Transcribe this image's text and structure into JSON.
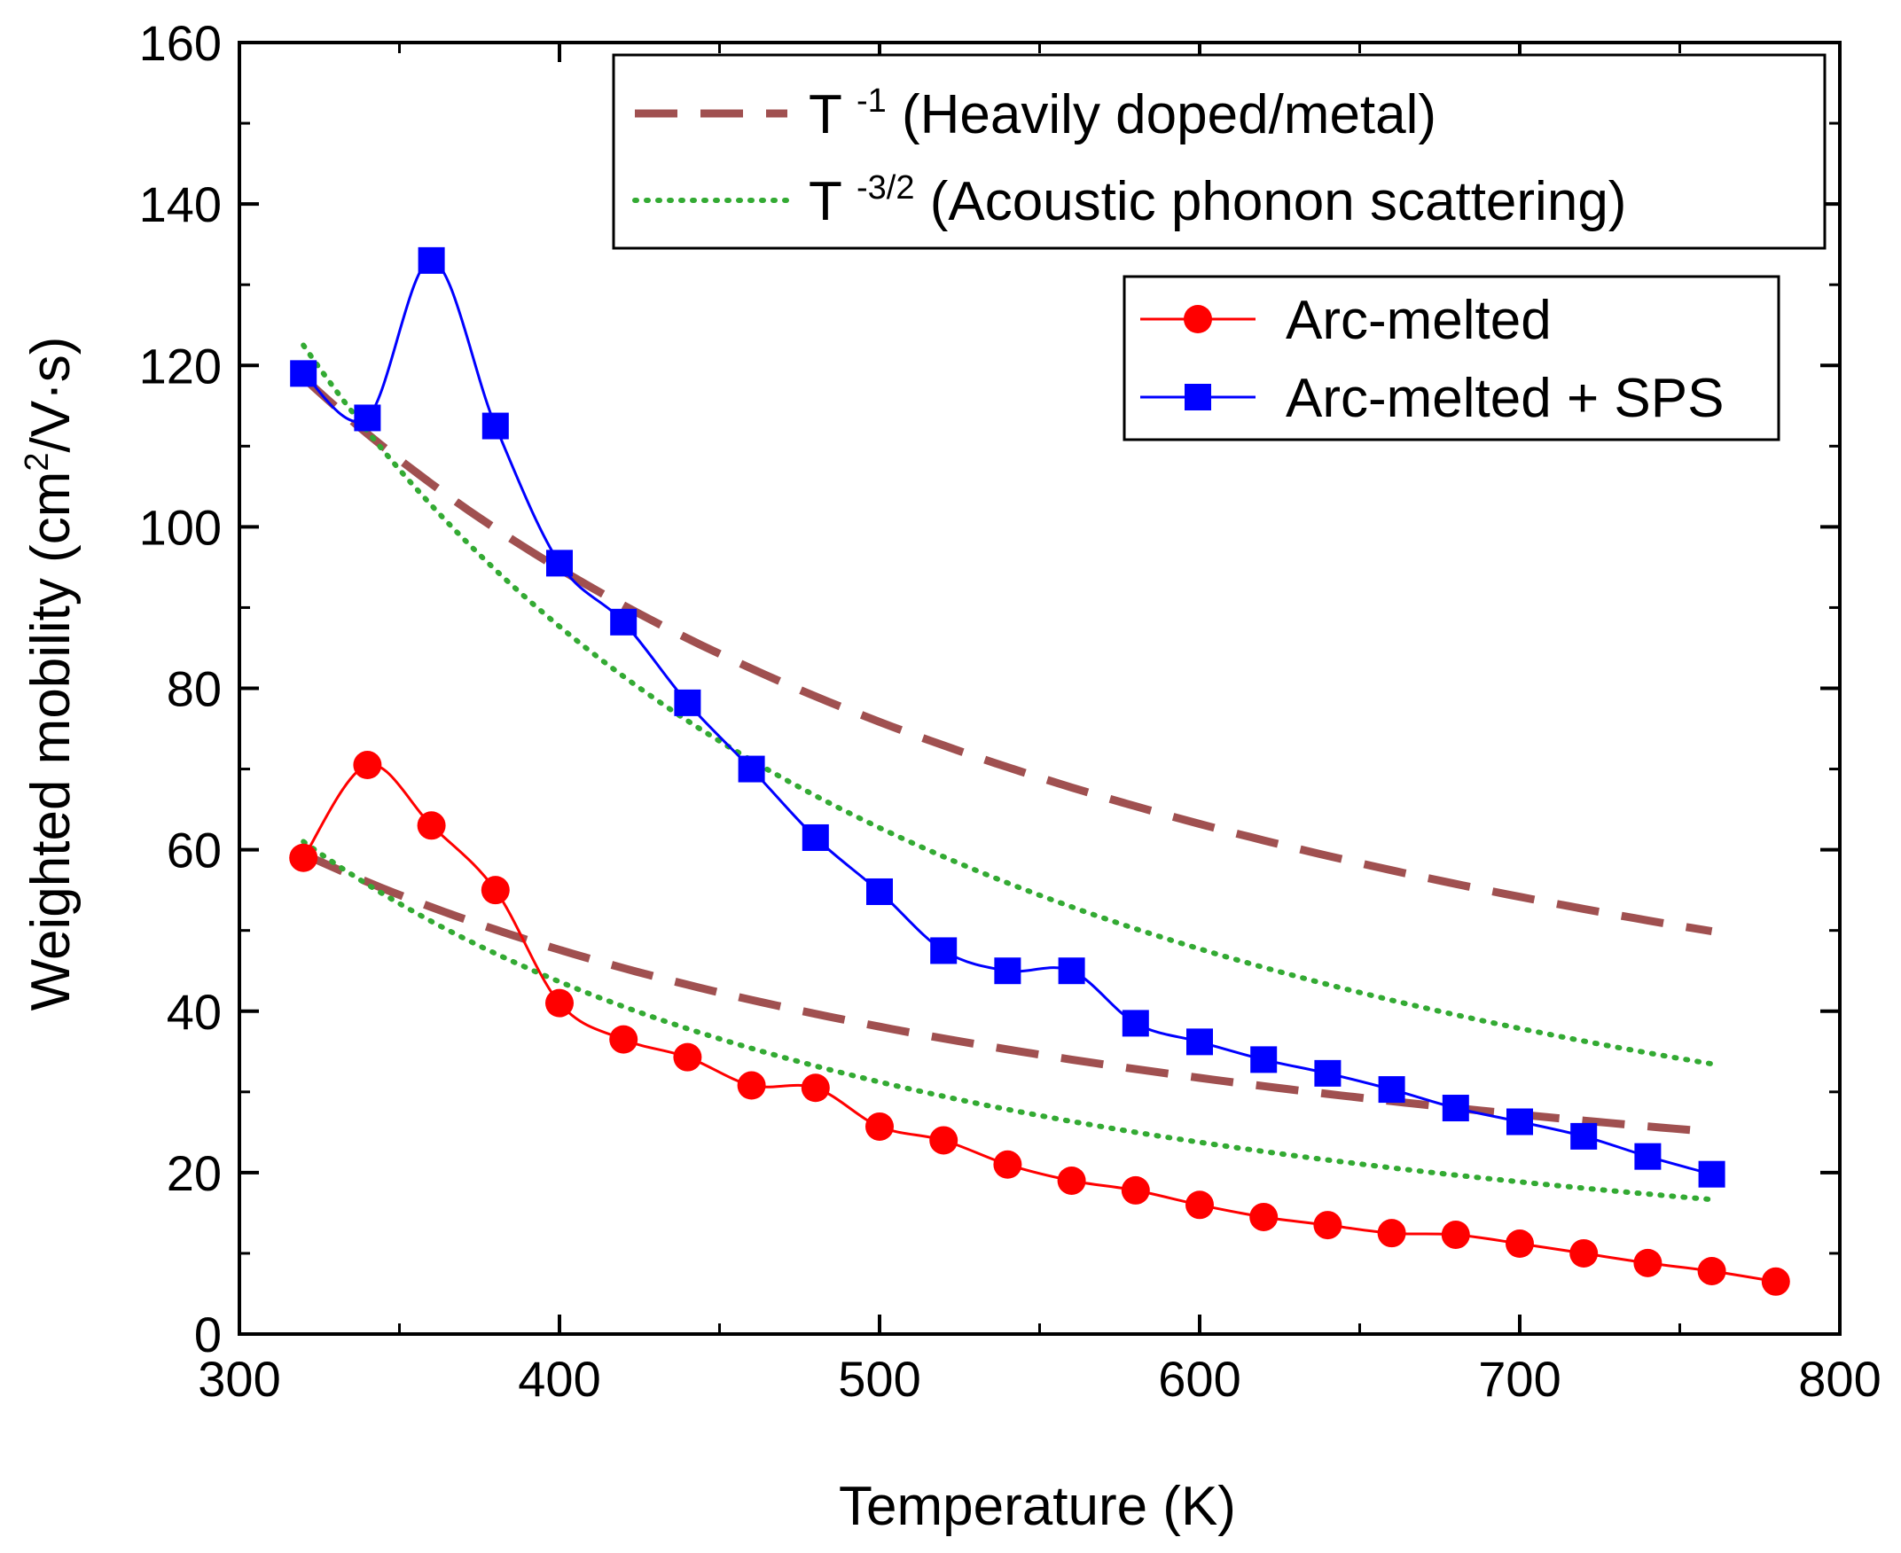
{
  "chart_data": {
    "type": "line",
    "xlabel": "Temperature (K)",
    "ylabel_parts": {
      "main": "Weighted mobility (cm",
      "sup": "2",
      "tail": "/V·s)"
    },
    "xlim": [
      300,
      800
    ],
    "ylim": [
      0,
      160
    ],
    "xticks": [
      300,
      400,
      500,
      600,
      700,
      800
    ],
    "yticks": [
      0,
      20,
      40,
      60,
      80,
      100,
      120,
      140,
      160
    ],
    "series": [
      {
        "name": "Arc-melted",
        "color": "#ff0000",
        "marker": "circle",
        "x": [
          320,
          340,
          360,
          380,
          400,
          420,
          440,
          460,
          480,
          500,
          520,
          540,
          560,
          580,
          600,
          620,
          640,
          660,
          680,
          700,
          720,
          740,
          760,
          780
        ],
        "y": [
          59,
          70.5,
          63,
          55,
          41,
          36.5,
          34.3,
          30.8,
          30.5,
          25.7,
          24,
          21,
          19,
          17.8,
          16,
          14.5,
          13.5,
          12.5,
          12.3,
          11.2,
          10,
          8.8,
          7.8,
          6.5
        ]
      },
      {
        "name": "Arc-melted + SPS",
        "color": "#0000ff",
        "marker": "square",
        "x": [
          320,
          340,
          360,
          380,
          400,
          420,
          440,
          460,
          480,
          500,
          520,
          540,
          560,
          580,
          600,
          620,
          640,
          660,
          680,
          700,
          720,
          740,
          760
        ],
        "y": [
          119,
          113.5,
          133,
          112.5,
          95.5,
          88.2,
          78.2,
          70,
          61.5,
          54.8,
          47.5,
          45,
          45,
          38.5,
          36.2,
          34,
          32.3,
          30.3,
          28,
          26.3,
          24.5,
          22,
          19.8
        ]
      }
    ],
    "reference_curves": [
      {
        "name": "T^-1 upper",
        "law": "T^-1",
        "anchor_T": 320,
        "anchor_value": 118.5,
        "T_range": [
          320,
          760
        ],
        "color": "#a05050",
        "style": "dashed"
      },
      {
        "name": "T^-1 lower",
        "law": "T^-1",
        "anchor_T": 320,
        "anchor_value": 59.5,
        "T_range": [
          320,
          760
        ],
        "color": "#a05050",
        "style": "dashed"
      },
      {
        "name": "T^-3/2 upper",
        "law": "T^-3/2",
        "anchor_T": 320,
        "anchor_value": 122.5,
        "T_range": [
          320,
          760
        ],
        "color": "#33aa33",
        "style": "dotted"
      },
      {
        "name": "T^-3/2 lower",
        "law": "T^-3/2",
        "anchor_T": 320,
        "anchor_value": 61,
        "T_range": [
          320,
          760
        ],
        "color": "#33aa33",
        "style": "dotted"
      }
    ],
    "legend_top": [
      {
        "symbol": "T",
        "sup": "-1",
        "text": "(Heavily doped/metal)",
        "color": "#a05050",
        "style": "dashed"
      },
      {
        "symbol": "T",
        "sup": "-3/2",
        "text": "(Acoustic phonon scattering)",
        "color": "#33aa33",
        "style": "dotted"
      }
    ],
    "legend_bottom": [
      {
        "text": "Arc-melted",
        "color": "#ff0000",
        "marker": "circle"
      },
      {
        "text": "Arc-melted + SPS",
        "color": "#0000ff",
        "marker": "square"
      }
    ]
  }
}
